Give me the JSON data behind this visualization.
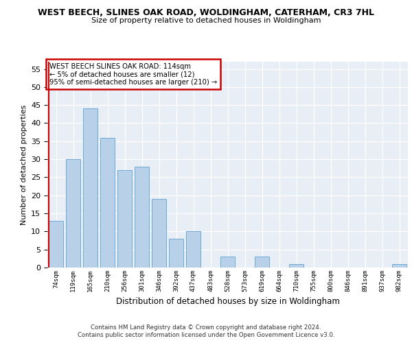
{
  "title": "WEST BEECH, SLINES OAK ROAD, WOLDINGHAM, CATERHAM, CR3 7HL",
  "subtitle": "Size of property relative to detached houses in Woldingham",
  "xlabel": "Distribution of detached houses by size in Woldingham",
  "ylabel": "Number of detached properties",
  "categories": [
    "74sqm",
    "119sqm",
    "165sqm",
    "210sqm",
    "256sqm",
    "301sqm",
    "346sqm",
    "392sqm",
    "437sqm",
    "483sqm",
    "528sqm",
    "573sqm",
    "619sqm",
    "664sqm",
    "710sqm",
    "755sqm",
    "800sqm",
    "846sqm",
    "891sqm",
    "937sqm",
    "982sqm"
  ],
  "values": [
    13,
    30,
    44,
    36,
    27,
    28,
    19,
    8,
    10,
    0,
    3,
    0,
    3,
    0,
    1,
    0,
    0,
    0,
    0,
    0,
    1
  ],
  "bar_color": "#b8d0e8",
  "bar_edge_color": "#6aaad4",
  "vline_color": "#cc0000",
  "annotation_text": "WEST BEECH SLINES OAK ROAD: 114sqm\n← 5% of detached houses are smaller (12)\n95% of semi-detached houses are larger (210) →",
  "annotation_box_color": "#ffffff",
  "annotation_box_edge_color": "#cc0000",
  "ylim": [
    0,
    57
  ],
  "yticks": [
    0,
    5,
    10,
    15,
    20,
    25,
    30,
    35,
    40,
    45,
    50,
    55
  ],
  "plot_bg_color": "#e8eef5",
  "footnote1": "Contains HM Land Registry data © Crown copyright and database right 2024.",
  "footnote2": "Contains public sector information licensed under the Open Government Licence v3.0."
}
